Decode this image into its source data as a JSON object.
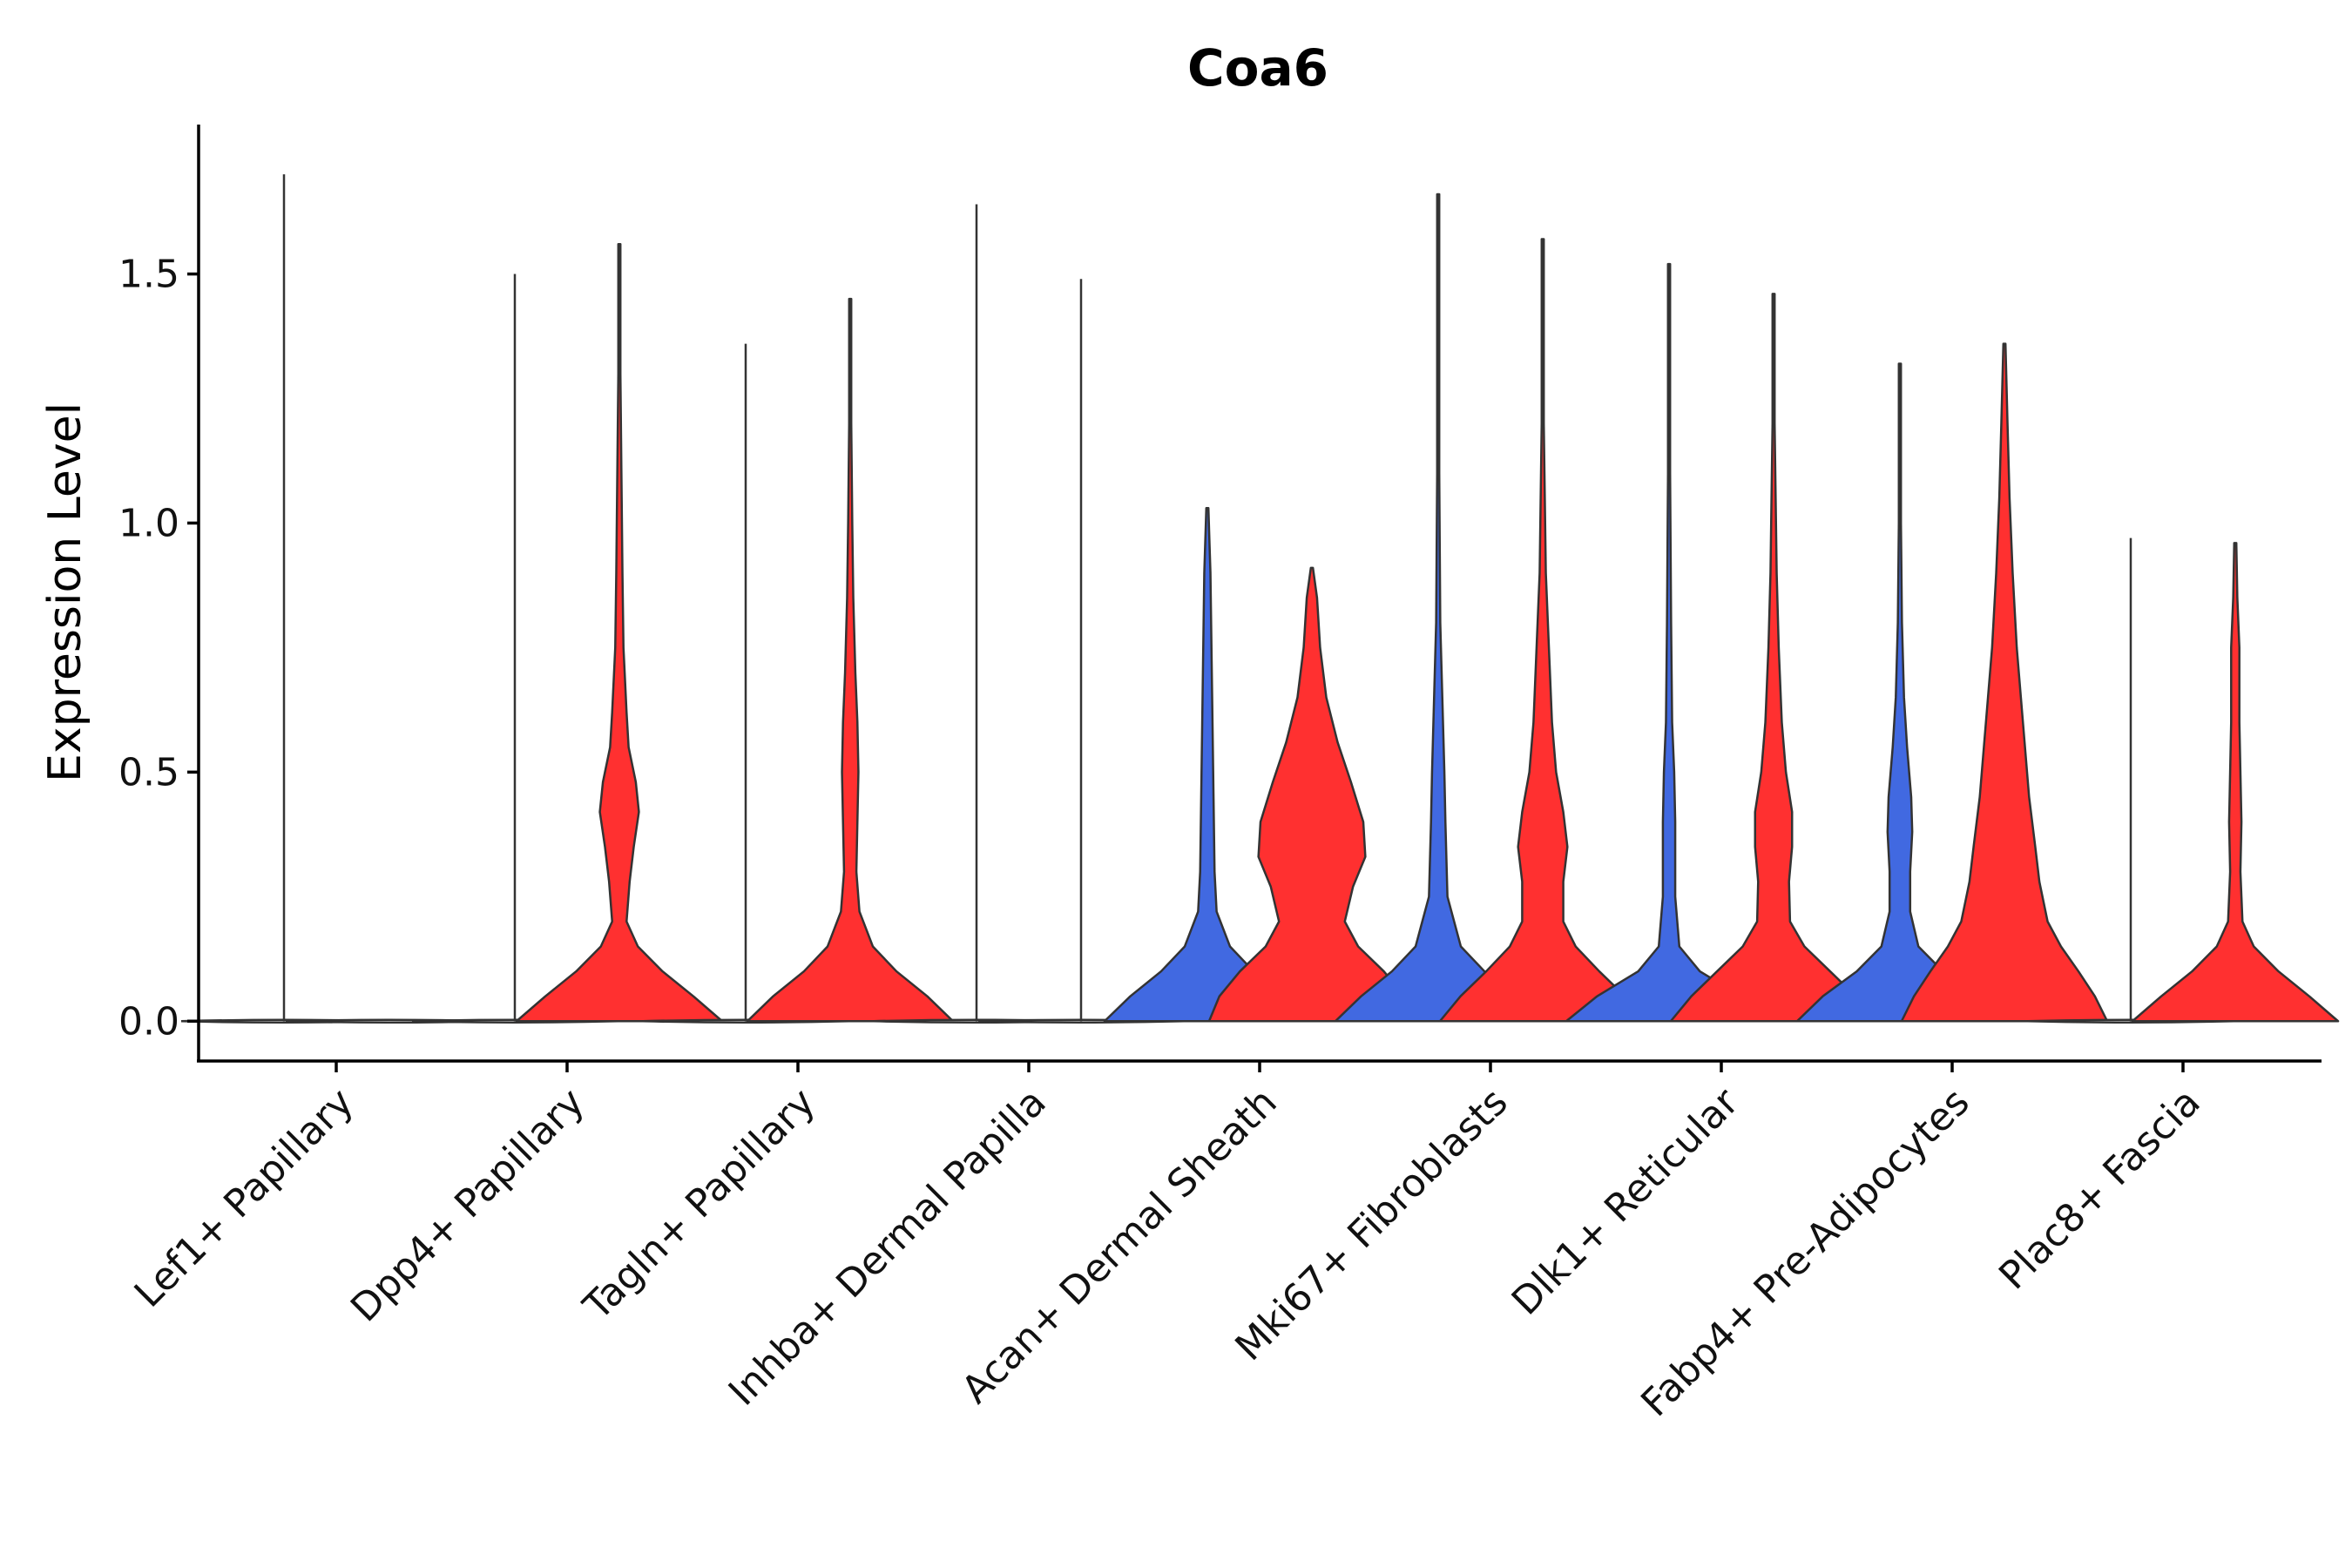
{
  "chart_data": {
    "type": "violin",
    "title": "Coa6",
    "xlabel": "",
    "ylabel": "Expression Level",
    "ylim": [
      -0.08,
      1.8
    ],
    "yticks": [
      0.0,
      0.5,
      1.0,
      1.5
    ],
    "ytick_labels": [
      "0.0",
      "0.5",
      "1.0",
      "1.5"
    ],
    "categories": [
      "Lef1+ Papillary",
      "Dpp4+ Papillary",
      "Tagln+ Papillary",
      "Inhba+ Dermal Papilla",
      "Acan+ Dermal Sheath",
      "Mki67+ Fibroblasts",
      "Dlk1+ Reticular",
      "Fabp4+ Pre-Adipocytes",
      "Plac8+ Fascia"
    ],
    "series_colors": {
      "left": "#4169E1",
      "right": "#FF3030"
    },
    "violins": [
      {
        "category": 0,
        "side": "left",
        "max": 1.7,
        "density": "zero"
      },
      {
        "category": 0,
        "side": "right",
        "max": 0.0,
        "density": "zero"
      },
      {
        "category": 1,
        "side": "left",
        "max": 1.5,
        "density": "zero"
      },
      {
        "category": 1,
        "side": "right",
        "max": 1.56,
        "density": [
          [
            0,
            1.0
          ],
          [
            0.05,
            0.72
          ],
          [
            0.1,
            0.42
          ],
          [
            0.15,
            0.18
          ],
          [
            0.2,
            0.07
          ],
          [
            0.28,
            0.1
          ],
          [
            0.35,
            0.14
          ],
          [
            0.42,
            0.19
          ],
          [
            0.48,
            0.16
          ],
          [
            0.55,
            0.09
          ],
          [
            0.62,
            0.07
          ],
          [
            0.75,
            0.04
          ],
          [
            0.9,
            0.03
          ],
          [
            1.1,
            0.02
          ],
          [
            1.3,
            0.01
          ],
          [
            1.56,
            0.0
          ]
        ]
      },
      {
        "category": 2,
        "side": "left",
        "max": 1.36,
        "density": "zero"
      },
      {
        "category": 2,
        "side": "right",
        "max": 1.45,
        "density": [
          [
            0,
            1.0
          ],
          [
            0.05,
            0.75
          ],
          [
            0.1,
            0.45
          ],
          [
            0.15,
            0.22
          ],
          [
            0.22,
            0.09
          ],
          [
            0.3,
            0.06
          ],
          [
            0.4,
            0.07
          ],
          [
            0.5,
            0.08
          ],
          [
            0.6,
            0.07
          ],
          [
            0.7,
            0.05
          ],
          [
            0.85,
            0.03
          ],
          [
            1.0,
            0.02
          ],
          [
            1.2,
            0.01
          ],
          [
            1.45,
            0.0
          ]
        ]
      },
      {
        "category": 3,
        "side": "left",
        "max": 1.64,
        "density": "zero"
      },
      {
        "category": 3,
        "side": "right",
        "max": 1.49,
        "density": "zero"
      },
      {
        "category": 4,
        "side": "left",
        "max": 1.03,
        "density": [
          [
            0,
            1.0
          ],
          [
            0.05,
            0.75
          ],
          [
            0.1,
            0.45
          ],
          [
            0.15,
            0.22
          ],
          [
            0.22,
            0.09
          ],
          [
            0.3,
            0.07
          ],
          [
            0.45,
            0.06
          ],
          [
            0.6,
            0.05
          ],
          [
            0.75,
            0.04
          ],
          [
            0.9,
            0.03
          ],
          [
            1.03,
            0.0
          ]
        ]
      },
      {
        "category": 4,
        "side": "right",
        "max": 0.91,
        "density": [
          [
            0,
            1.0
          ],
          [
            0.05,
            0.9
          ],
          [
            0.1,
            0.7
          ],
          [
            0.15,
            0.45
          ],
          [
            0.2,
            0.32
          ],
          [
            0.27,
            0.4
          ],
          [
            0.33,
            0.52
          ],
          [
            0.4,
            0.5
          ],
          [
            0.48,
            0.38
          ],
          [
            0.56,
            0.25
          ],
          [
            0.65,
            0.14
          ],
          [
            0.75,
            0.08
          ],
          [
            0.85,
            0.05
          ],
          [
            0.91,
            0.0
          ]
        ]
      },
      {
        "category": 5,
        "side": "left",
        "max": 1.66,
        "density": [
          [
            0,
            1.0
          ],
          [
            0.05,
            0.75
          ],
          [
            0.1,
            0.45
          ],
          [
            0.15,
            0.22
          ],
          [
            0.25,
            0.09
          ],
          [
            0.4,
            0.07
          ],
          [
            0.5,
            0.06
          ],
          [
            0.65,
            0.04
          ],
          [
            0.8,
            0.02
          ],
          [
            1.1,
            0.01
          ],
          [
            1.66,
            0.0
          ]
        ]
      },
      {
        "category": 5,
        "side": "right",
        "max": 1.57,
        "density": [
          [
            0,
            1.0
          ],
          [
            0.05,
            0.8
          ],
          [
            0.1,
            0.55
          ],
          [
            0.15,
            0.32
          ],
          [
            0.2,
            0.2
          ],
          [
            0.28,
            0.2
          ],
          [
            0.35,
            0.24
          ],
          [
            0.42,
            0.2
          ],
          [
            0.5,
            0.13
          ],
          [
            0.6,
            0.09
          ],
          [
            0.75,
            0.06
          ],
          [
            0.9,
            0.03
          ],
          [
            1.2,
            0.01
          ],
          [
            1.57,
            0.0
          ]
        ]
      },
      {
        "category": 6,
        "side": "left",
        "max": 1.52,
        "density": [
          [
            0,
            1.0
          ],
          [
            0.05,
            0.7
          ],
          [
            0.1,
            0.3
          ],
          [
            0.15,
            0.1
          ],
          [
            0.25,
            0.06
          ],
          [
            0.4,
            0.06
          ],
          [
            0.5,
            0.05
          ],
          [
            0.6,
            0.03
          ],
          [
            0.8,
            0.02
          ],
          [
            1.1,
            0.01
          ],
          [
            1.52,
            0.0
          ]
        ]
      },
      {
        "category": 6,
        "side": "right",
        "max": 1.46,
        "density": [
          [
            0,
            1.0
          ],
          [
            0.05,
            0.8
          ],
          [
            0.1,
            0.55
          ],
          [
            0.15,
            0.3
          ],
          [
            0.2,
            0.16
          ],
          [
            0.28,
            0.15
          ],
          [
            0.35,
            0.18
          ],
          [
            0.42,
            0.18
          ],
          [
            0.5,
            0.12
          ],
          [
            0.6,
            0.08
          ],
          [
            0.75,
            0.05
          ],
          [
            0.9,
            0.03
          ],
          [
            1.2,
            0.01
          ],
          [
            1.46,
            0.0
          ]
        ]
      },
      {
        "category": 7,
        "side": "left",
        "max": 1.32,
        "density": [
          [
            0,
            1.0
          ],
          [
            0.05,
            0.75
          ],
          [
            0.1,
            0.42
          ],
          [
            0.15,
            0.18
          ],
          [
            0.22,
            0.1
          ],
          [
            0.3,
            0.1
          ],
          [
            0.38,
            0.12
          ],
          [
            0.45,
            0.11
          ],
          [
            0.55,
            0.07
          ],
          [
            0.65,
            0.04
          ],
          [
            0.8,
            0.02
          ],
          [
            1.0,
            0.01
          ],
          [
            1.32,
            0.0
          ]
        ]
      },
      {
        "category": 7,
        "side": "right",
        "max": 1.36,
        "density": [
          [
            0,
            1.0
          ],
          [
            0.05,
            0.88
          ],
          [
            0.1,
            0.72
          ],
          [
            0.15,
            0.55
          ],
          [
            0.2,
            0.42
          ],
          [
            0.28,
            0.34
          ],
          [
            0.35,
            0.3
          ],
          [
            0.45,
            0.24
          ],
          [
            0.55,
            0.2
          ],
          [
            0.65,
            0.16
          ],
          [
            0.75,
            0.12
          ],
          [
            0.9,
            0.08
          ],
          [
            1.05,
            0.05
          ],
          [
            1.2,
            0.03
          ],
          [
            1.36,
            0.0
          ]
        ]
      },
      {
        "category": 8,
        "side": "left",
        "max": 0.97,
        "density": "zero"
      },
      {
        "category": 8,
        "side": "right",
        "max": 0.96,
        "density": [
          [
            0,
            1.0
          ],
          [
            0.05,
            0.72
          ],
          [
            0.1,
            0.42
          ],
          [
            0.15,
            0.18
          ],
          [
            0.2,
            0.07
          ],
          [
            0.3,
            0.05
          ],
          [
            0.4,
            0.06
          ],
          [
            0.5,
            0.05
          ],
          [
            0.6,
            0.04
          ],
          [
            0.75,
            0.04
          ],
          [
            0.85,
            0.02
          ],
          [
            0.96,
            0.0
          ]
        ]
      }
    ]
  }
}
